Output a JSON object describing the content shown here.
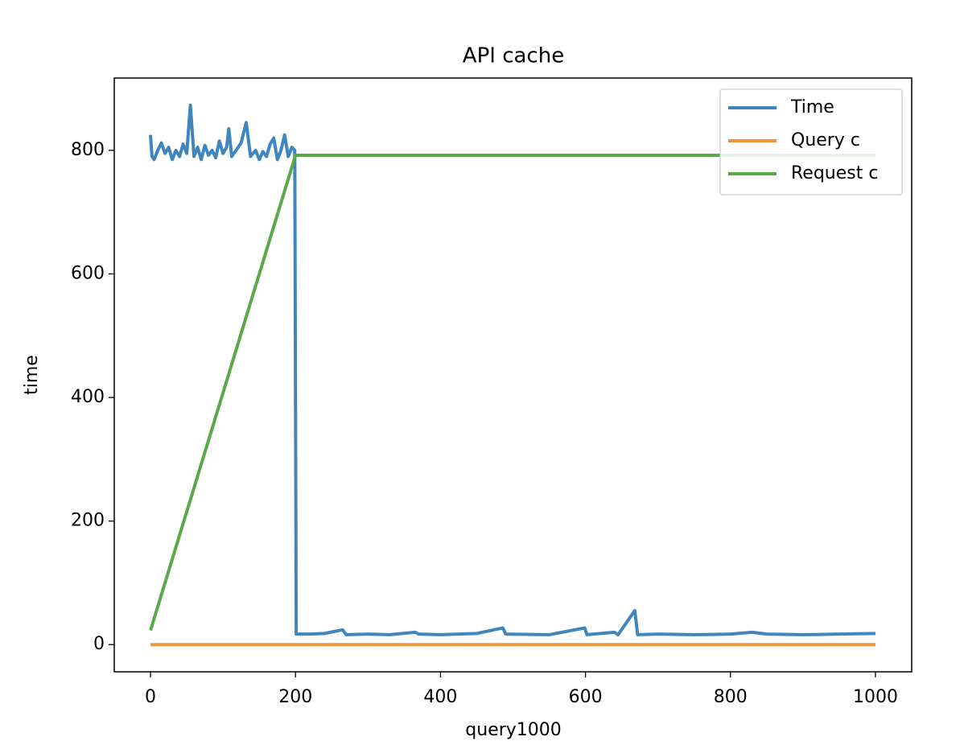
{
  "chart_data": {
    "type": "line",
    "title": "API cache",
    "xlabel": "query1000",
    "ylabel": "time",
    "xlim": [
      -50,
      1050
    ],
    "ylim": [
      -44,
      917
    ],
    "xticks": [
      0,
      200,
      400,
      600,
      800,
      1000
    ],
    "yticks": [
      0,
      200,
      400,
      600,
      800
    ],
    "legend": "upper right",
    "series": [
      {
        "name": "Time",
        "color": "#3f86bf",
        "x": [
          0,
          2,
          5,
          10,
          15,
          20,
          25,
          30,
          35,
          40,
          45,
          50,
          55,
          60,
          65,
          70,
          75,
          80,
          85,
          90,
          95,
          100,
          105,
          108,
          112,
          118,
          125,
          132,
          138,
          145,
          150,
          155,
          160,
          165,
          170,
          175,
          180,
          185,
          190,
          195,
          199,
          201,
          220,
          240,
          265,
          270,
          300,
          330,
          365,
          370,
          400,
          450,
          486,
          490,
          550,
          599,
          602,
          640,
          645,
          668,
          672,
          700,
          750,
          800,
          830,
          850,
          900,
          950,
          1000
        ],
        "values": [
          825,
          790,
          785,
          800,
          812,
          795,
          805,
          785,
          800,
          790,
          810,
          795,
          873,
          790,
          805,
          785,
          808,
          792,
          800,
          788,
          815,
          795,
          805,
          835,
          790,
          800,
          812,
          845,
          790,
          800,
          785,
          798,
          790,
          810,
          820,
          785,
          800,
          825,
          790,
          805,
          800,
          17,
          17,
          18,
          24,
          16,
          17,
          16,
          20,
          17,
          16,
          18,
          27,
          17,
          16,
          27,
          16,
          20,
          16,
          55,
          16,
          17,
          16,
          17,
          20,
          17,
          16,
          17,
          18
        ]
      },
      {
        "name": "Query c",
        "color": "#f0953e",
        "x": [
          0,
          1000
        ],
        "values": [
          0,
          0
        ]
      },
      {
        "name": "Request c",
        "color": "#5ba84a",
        "x": [
          0,
          200,
          1000
        ],
        "values": [
          23,
          792,
          792
        ]
      }
    ]
  }
}
